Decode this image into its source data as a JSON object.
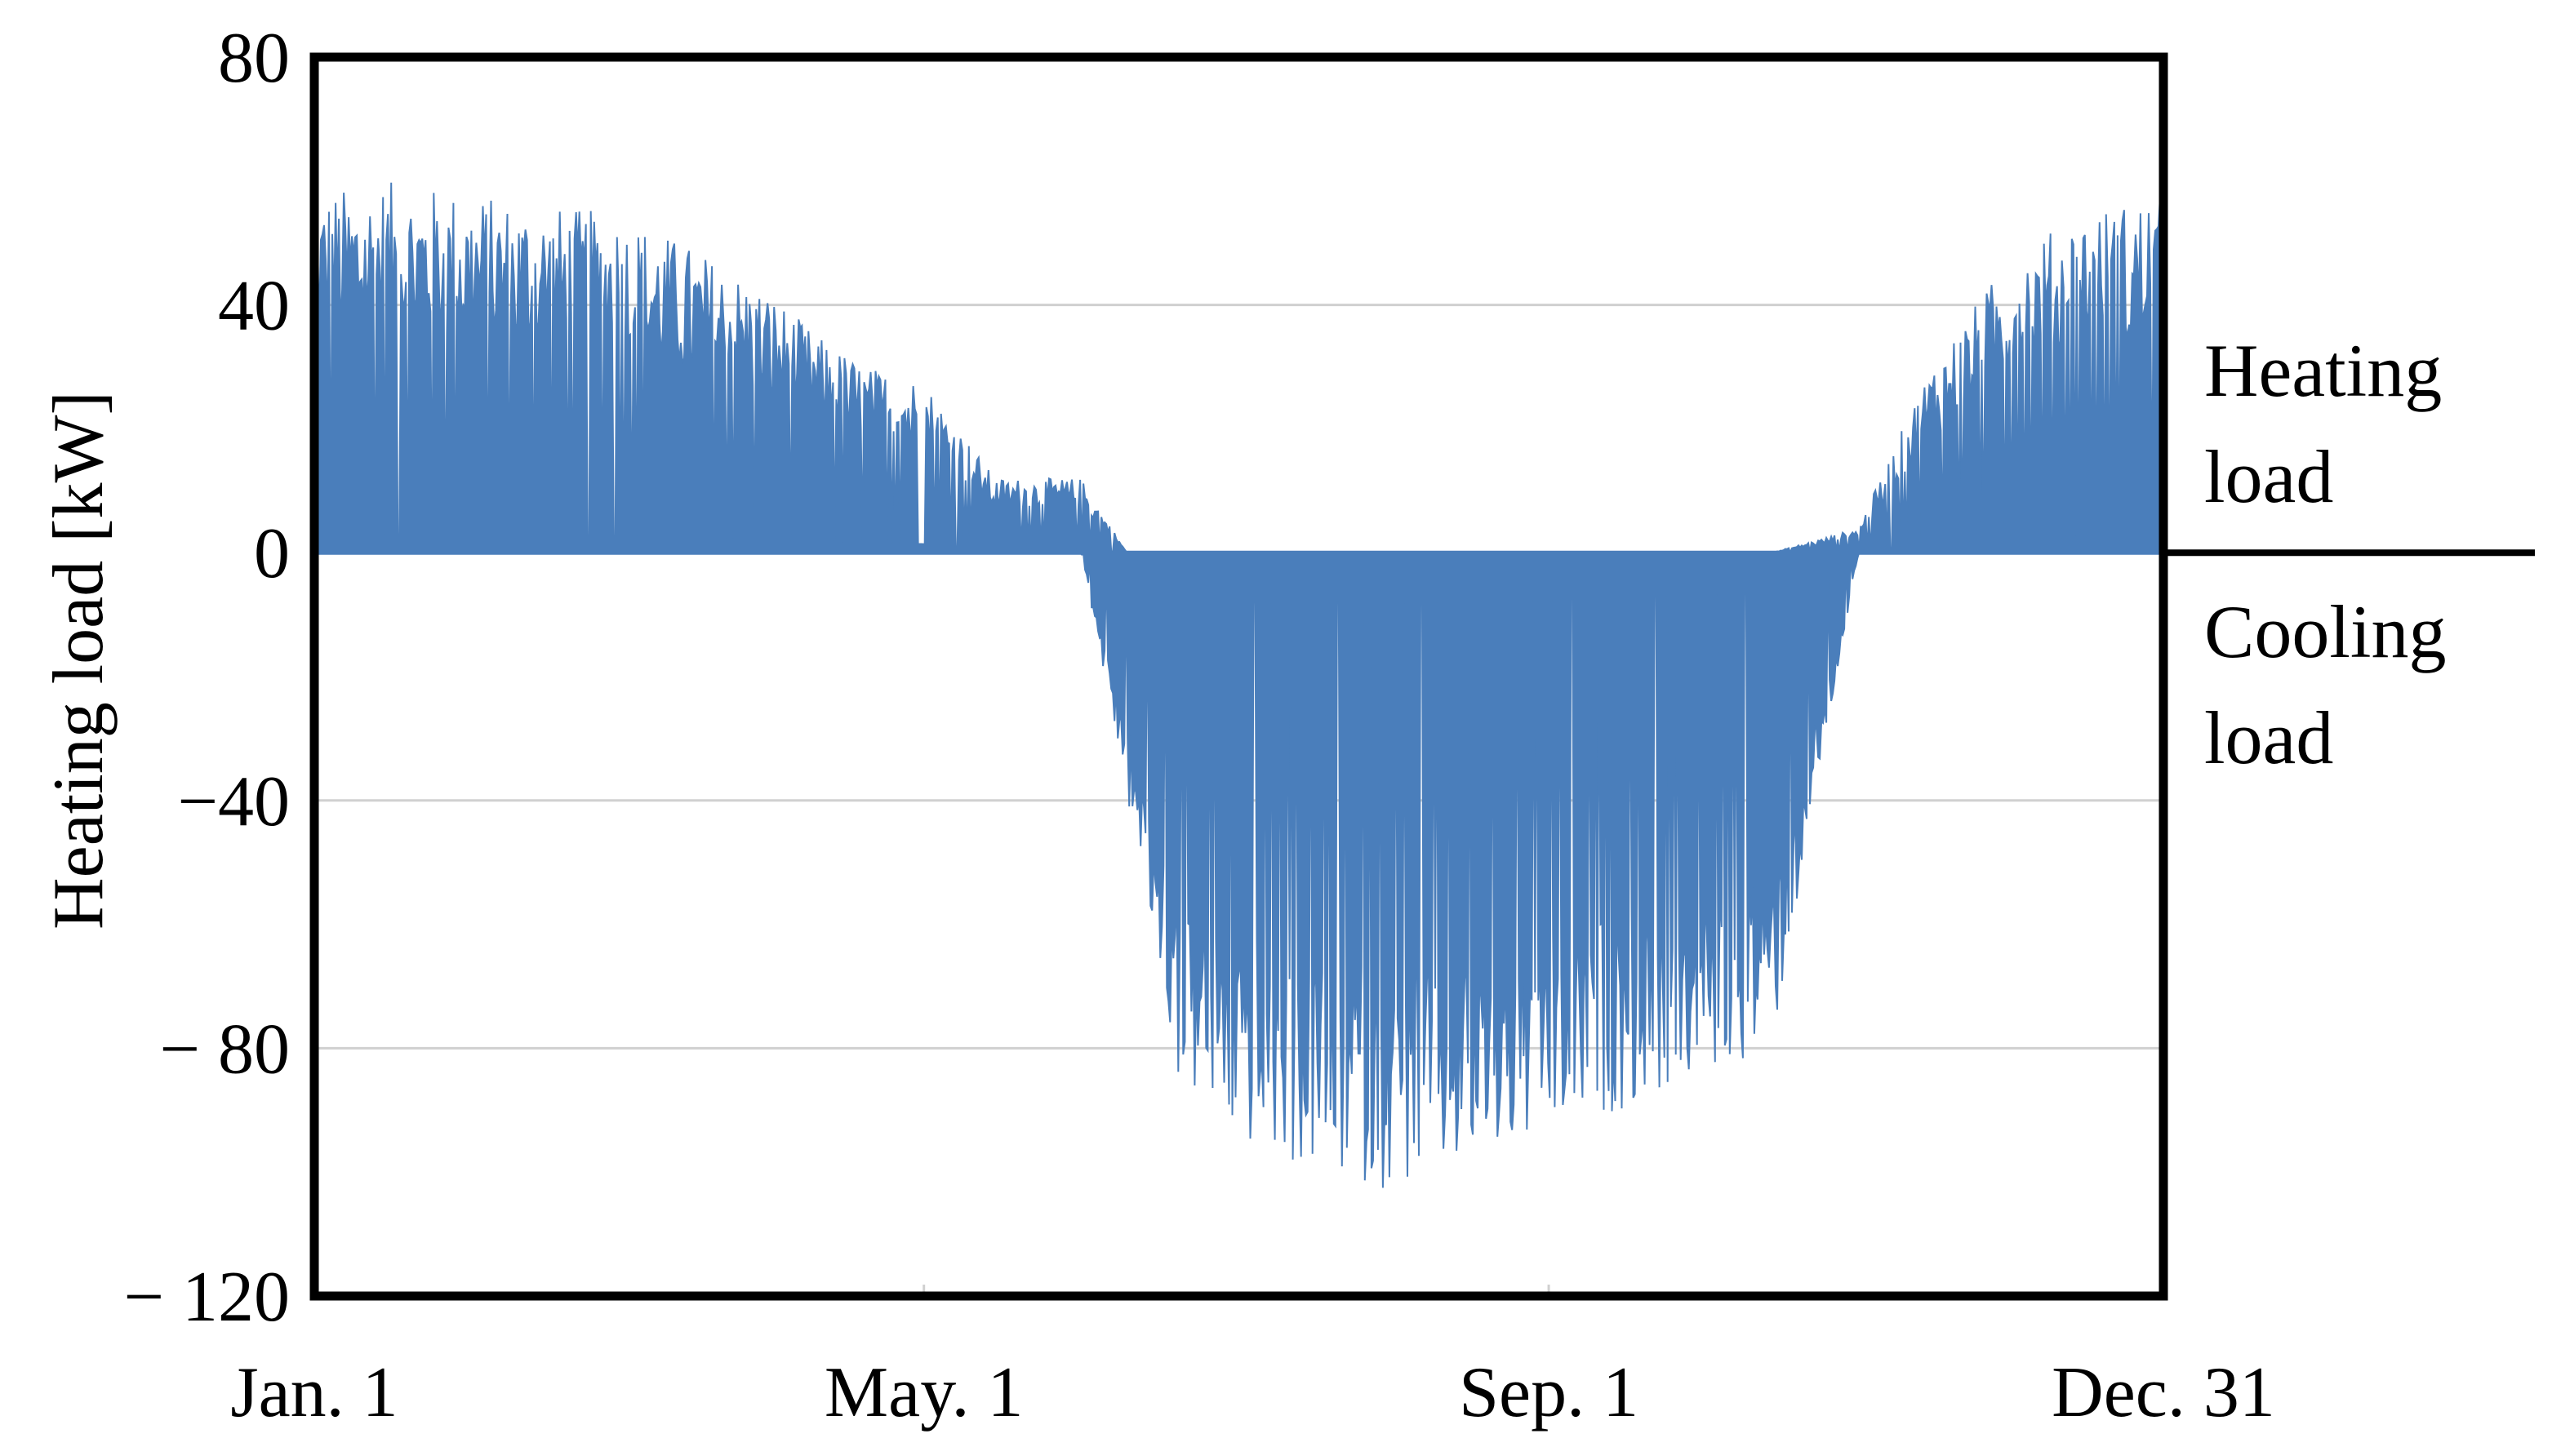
{
  "chart_data": {
    "type": "area",
    "title": "",
    "ylabel": "Heating load [kW]",
    "xlabel": "",
    "ylim": [
      -120,
      80
    ],
    "xlim": [
      "Jan. 1",
      "Dec. 31"
    ],
    "yticks": [
      {
        "value": 80,
        "label": "80"
      },
      {
        "value": 40,
        "label": "40"
      },
      {
        "value": 0,
        "label": "0"
      },
      {
        "value": -40,
        "label": "−40"
      },
      {
        "value": -80,
        "label": "− 80"
      },
      {
        "value": -120,
        "label": "− 120"
      }
    ],
    "xticks": [
      {
        "date": "Jan. 1",
        "label": "Jan. 1"
      },
      {
        "date": "May. 1",
        "label": "May. 1"
      },
      {
        "date": "Sep. 1",
        "label": "Sep. 1"
      },
      {
        "date": "Dec. 31",
        "label": "Dec. 31"
      }
    ],
    "grid": true,
    "series": [
      {
        "color": "#4a7ebb",
        "resolution": "hourly",
        "envelope_dates": [
          "Jan. 1",
          "Jan. 15",
          "Feb. 1",
          "Feb. 15",
          "Mar. 1",
          "Mar. 15",
          "Apr. 1",
          "Apr. 10",
          "Apr. 20",
          "May. 1",
          "May. 15",
          "Jun. 1",
          "Jun. 10",
          "Jun. 20",
          "Jul. 1",
          "Jul. 15",
          "Aug. 1",
          "Aug. 15",
          "Sep. 1",
          "Sep. 15",
          "Oct. 1",
          "Oct. 15",
          "Nov. 1",
          "Nov. 15",
          "Dec. 1",
          "Dec. 15",
          "Dec. 31"
        ],
        "envelope_max_kW": [
          58,
          60,
          58,
          56,
          55,
          50,
          42,
          35,
          30,
          28,
          12,
          12,
          0,
          0,
          0,
          0,
          0,
          0,
          0,
          0,
          0,
          0,
          4,
          30,
          48,
          55,
          58
        ],
        "envelope_min_kW": [
          0,
          0,
          0,
          0,
          0,
          0,
          0,
          0,
          0,
          0,
          0,
          0,
          -40,
          -85,
          -95,
          -100,
          -103,
          -100,
          -95,
          -90,
          -85,
          -80,
          0,
          0,
          0,
          0,
          0
        ]
      }
    ],
    "annotations": [
      {
        "text_lines": [
          "Heating",
          "load"
        ]
      },
      {
        "text_lines": [
          "Cooling",
          "load"
        ]
      }
    ]
  }
}
